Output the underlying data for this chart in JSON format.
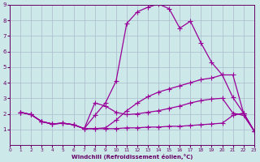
{
  "background_color": "#cce8e8",
  "grid_color": "#aabbcc",
  "line_color": "#990099",
  "xlabel": "Windchill (Refroidissement éolien,°C)",
  "xlim": [
    0,
    23
  ],
  "ylim": [
    0,
    9
  ],
  "xticks": [
    0,
    1,
    2,
    3,
    4,
    5,
    6,
    7,
    8,
    9,
    10,
    11,
    12,
    13,
    14,
    15,
    16,
    17,
    18,
    19,
    20,
    21,
    22,
    23
  ],
  "yticks": [
    1,
    2,
    3,
    4,
    5,
    6,
    7,
    8,
    9
  ],
  "line1_x": [
    1,
    2,
    3,
    4,
    5,
    6,
    7,
    8,
    9,
    10,
    11,
    12,
    13,
    14,
    15,
    16,
    17,
    18,
    19,
    20,
    21,
    22,
    23
  ],
  "line1_y": [
    2.1,
    1.95,
    1.5,
    1.35,
    1.4,
    1.3,
    1.05,
    1.9,
    2.7,
    4.1,
    7.8,
    8.55,
    8.85,
    9.05,
    8.75,
    7.5,
    7.95,
    6.55,
    5.3,
    4.5,
    3.05,
    2.05,
    0.9
  ],
  "line2_x": [
    1,
    2,
    3,
    4,
    5,
    6,
    7,
    8,
    9,
    10,
    11,
    12,
    13,
    14,
    15,
    16,
    17,
    18,
    19,
    20,
    21,
    22,
    23
  ],
  "line2_y": [
    2.1,
    1.95,
    1.5,
    1.35,
    1.4,
    1.3,
    1.05,
    1.05,
    1.1,
    1.6,
    2.2,
    2.7,
    3.1,
    3.4,
    3.6,
    3.8,
    4.0,
    4.2,
    4.3,
    4.5,
    4.5,
    2.05,
    0.9
  ],
  "line3_x": [
    1,
    2,
    3,
    4,
    5,
    6,
    7,
    8,
    9,
    10,
    11,
    12,
    13,
    14,
    15,
    16,
    17,
    18,
    19,
    20,
    21,
    22,
    23
  ],
  "line3_y": [
    2.1,
    1.95,
    1.5,
    1.35,
    1.4,
    1.3,
    1.05,
    2.7,
    2.5,
    2.1,
    1.95,
    2.0,
    2.1,
    2.2,
    2.35,
    2.5,
    2.7,
    2.85,
    2.95,
    3.0,
    2.05,
    1.9,
    0.9
  ],
  "line4_x": [
    1,
    2,
    3,
    4,
    5,
    6,
    7,
    8,
    9,
    10,
    11,
    12,
    13,
    14,
    15,
    16,
    17,
    18,
    19,
    20,
    21,
    22,
    23
  ],
  "line4_y": [
    2.1,
    1.95,
    1.5,
    1.35,
    1.4,
    1.3,
    1.05,
    1.05,
    1.05,
    1.05,
    1.1,
    1.1,
    1.15,
    1.15,
    1.2,
    1.2,
    1.25,
    1.3,
    1.35,
    1.4,
    1.9,
    2.05,
    0.9
  ],
  "marker": "+",
  "markersize": 4,
  "linewidth": 0.9
}
